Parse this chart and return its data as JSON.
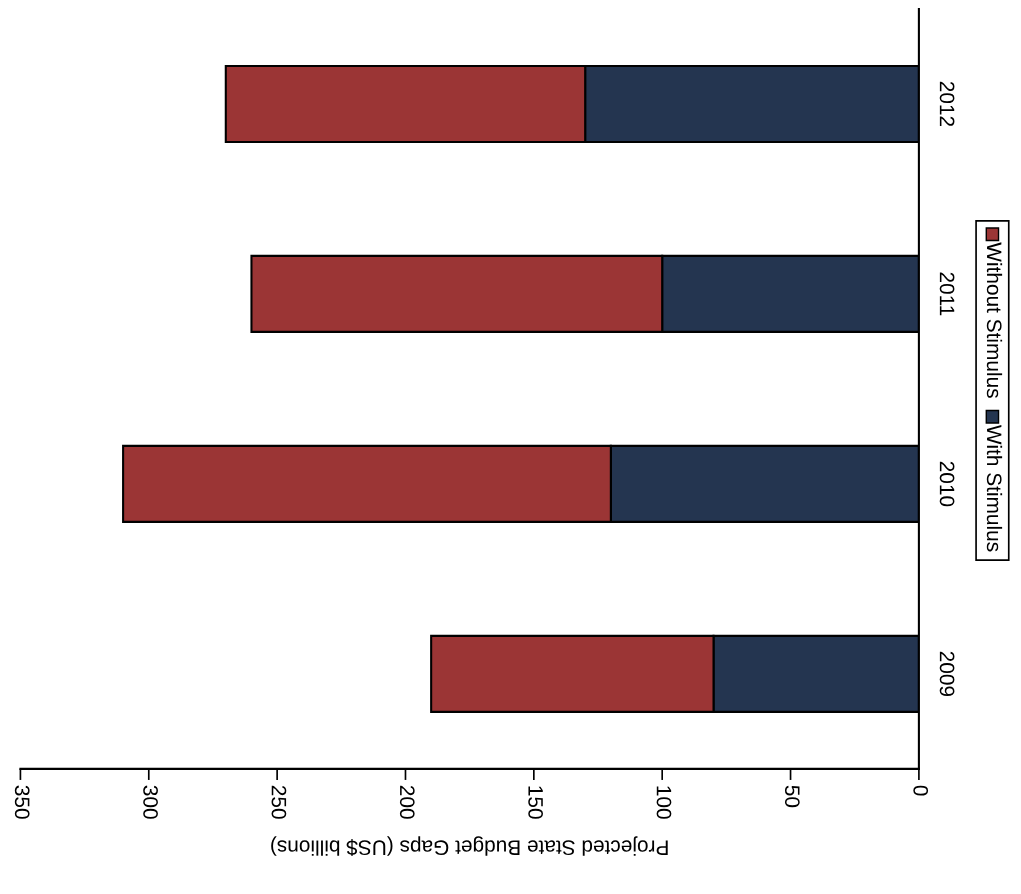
{
  "chart_data": {
    "type": "bar",
    "orientation": "horizontal",
    "stacked": true,
    "xlabel": "Projected State Budget Gaps (US$ billions)",
    "categories": [
      "2012",
      "2011",
      "2010",
      "2009"
    ],
    "series": [
      {
        "name": "With Stimulus",
        "color": "#243550",
        "values": [
          130,
          100,
          120,
          80
        ]
      },
      {
        "name": "Without Stimulus",
        "color": "#9b3535",
        "values": [
          140,
          160,
          190,
          110
        ]
      }
    ],
    "xlim": [
      350,
      0
    ],
    "xticks": [
      0,
      50,
      100,
      150,
      200,
      250,
      300,
      350
    ],
    "grid": false,
    "legend": "right"
  }
}
